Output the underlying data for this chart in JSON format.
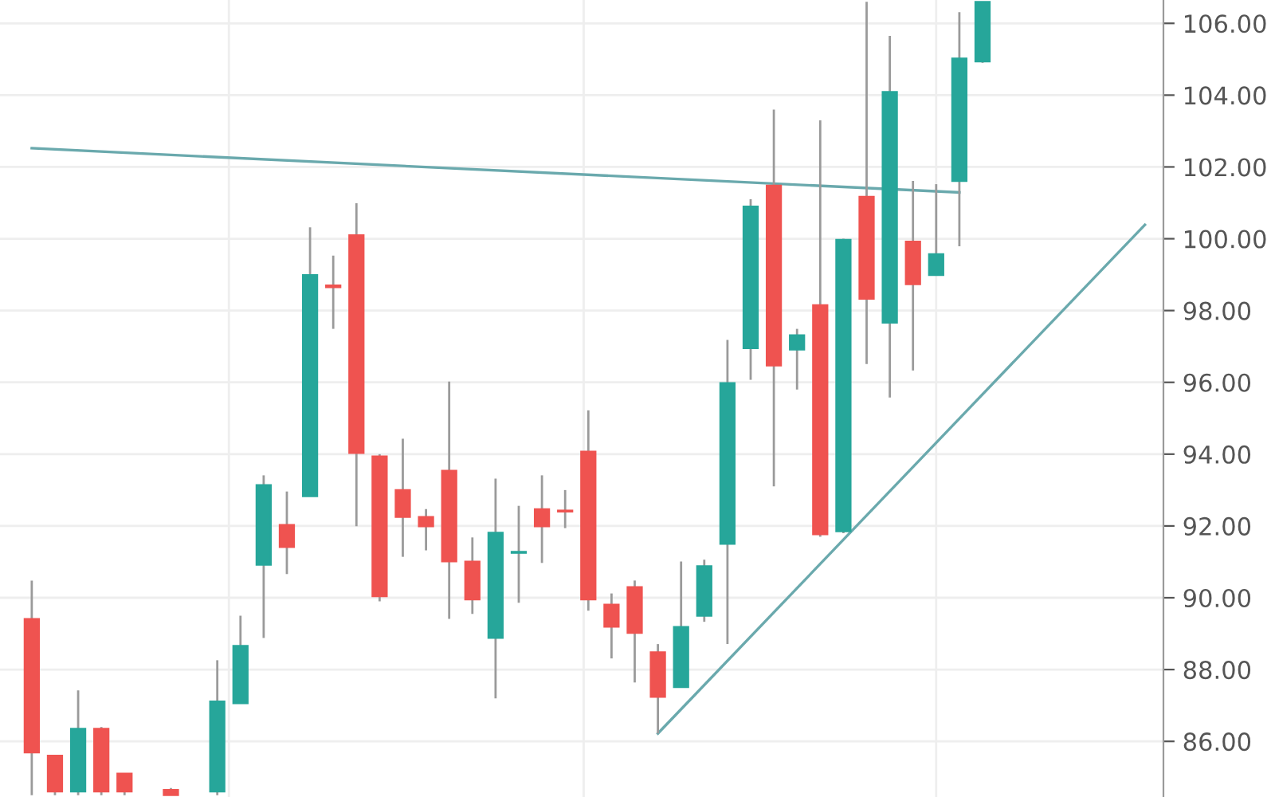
{
  "chart_data": {
    "type": "candlestick",
    "categories": [
      null,
      null,
      null,
      null,
      null,
      null,
      null,
      null,
      null,
      null,
      null,
      null,
      null,
      null,
      null,
      null,
      null,
      null,
      null,
      null,
      null,
      null,
      null,
      null,
      null,
      null,
      null,
      null,
      null,
      null,
      null,
      null,
      null,
      null,
      null,
      null,
      null,
      null,
      null,
      null,
      null,
      null,
      null,
      null,
      null,
      null,
      null,
      null,
      null
    ],
    "ohlc": [
      [
        89.41,
        90.48,
        84.5,
        85.69
      ],
      [
        85.6,
        85.6,
        84.5,
        84.6
      ],
      [
        84.6,
        87.42,
        84.5,
        86.35
      ],
      [
        86.35,
        86.4,
        84.5,
        84.6
      ],
      [
        85.1,
        85.1,
        84.5,
        84.6
      ],
      null,
      [
        84.65,
        84.7,
        84.5,
        84.5
      ],
      null,
      [
        84.6,
        88.26,
        84.5,
        87.11
      ],
      [
        87.06,
        89.5,
        87.06,
        88.66
      ],
      [
        90.92,
        93.41,
        88.88,
        93.14
      ],
      [
        92.03,
        92.96,
        90.66,
        91.41
      ],
      [
        92.83,
        100.32,
        92.83,
        98.99
      ],
      [
        98.7,
        99.53,
        97.49,
        98.65
      ],
      [
        100.1,
        100.99,
        91.99,
        94.03
      ],
      [
        93.94,
        94.0,
        89.9,
        90.04
      ],
      [
        93.0,
        94.43,
        91.14,
        92.25
      ],
      [
        92.25,
        92.47,
        91.32,
        91.99
      ],
      [
        93.54,
        96.02,
        89.41,
        91.01
      ],
      [
        91.01,
        91.68,
        89.55,
        89.95
      ],
      [
        88.88,
        93.32,
        87.2,
        91.81
      ],
      [
        91.25,
        92.56,
        89.86,
        91.28
      ],
      [
        92.47,
        93.41,
        90.97,
        91.99
      ],
      [
        92.43,
        93.0,
        91.94,
        92.4
      ],
      [
        94.07,
        95.22,
        89.64,
        89.95
      ],
      [
        89.81,
        90.12,
        88.31,
        89.19
      ],
      [
        90.3,
        90.48,
        87.64,
        89.02
      ],
      [
        88.48,
        88.71,
        86.22,
        87.24
      ],
      [
        87.51,
        91.01,
        87.51,
        89.19
      ],
      [
        89.5,
        91.06,
        89.33,
        90.88
      ],
      [
        91.5,
        97.18,
        88.71,
        95.98
      ],
      [
        96.95,
        101.1,
        96.07,
        100.9
      ],
      [
        101.48,
        103.6,
        93.1,
        96.47
      ],
      [
        96.91,
        97.49,
        95.8,
        97.31
      ],
      [
        98.15,
        103.3,
        91.7,
        91.77
      ],
      [
        91.85,
        100.0,
        91.8,
        99.97
      ],
      [
        101.17,
        106.6,
        96.51,
        98.33
      ],
      [
        97.66,
        105.65,
        95.58,
        104.09
      ],
      [
        99.92,
        101.61,
        96.33,
        98.73
      ],
      [
        98.99,
        101.52,
        98.99,
        99.57
      ],
      [
        101.61,
        106.31,
        99.79,
        105.02
      ],
      [
        104.94,
        106.6,
        104.9,
        106.6
      ],
      null,
      null,
      null,
      null,
      null,
      null,
      null
    ],
    "colors": [
      "#ef5350",
      "#ef5350",
      "#26a69a",
      "#ef5350",
      "#ef5350",
      null,
      "#ef5350",
      null,
      "#26a69a",
      "#26a69a",
      "#26a69a",
      "#ef5350",
      "#26a69a",
      "#ef5350",
      "#ef5350",
      "#ef5350",
      "#ef5350",
      "#ef5350",
      "#ef5350",
      "#ef5350",
      "#26a69a",
      "#26a69a",
      "#ef5350",
      "#ef5350",
      "#ef5350",
      "#ef5350",
      "#ef5350",
      "#ef5350",
      "#26a69a",
      "#26a69a",
      "#26a69a",
      "#26a69a",
      "#ef5350",
      "#26a69a",
      "#ef5350",
      "#26a69a",
      "#ef5350",
      "#26a69a",
      "#ef5350",
      "#26a69a",
      "#26a69a",
      "#26a69a",
      null,
      null,
      null,
      null,
      null,
      null,
      null
    ],
    "series": [
      {
        "type": "line",
        "color": "#6aa9ad",
        "values": [
          102.52,
          null,
          null,
          null,
          null,
          null,
          null,
          null,
          null,
          null,
          null,
          null,
          null,
          null,
          null,
          null,
          null,
          null,
          null,
          null,
          null,
          null,
          null,
          null,
          null,
          null,
          null,
          null,
          null,
          null,
          null,
          null,
          null,
          null,
          null,
          null,
          null,
          null,
          null,
          null,
          101.29,
          null,
          null,
          null,
          null,
          null,
          null,
          null,
          null
        ]
      },
      {
        "type": "line",
        "color": "#6aa9ad",
        "values": [
          null,
          null,
          null,
          null,
          null,
          null,
          null,
          null,
          null,
          null,
          null,
          null,
          null,
          null,
          null,
          null,
          null,
          null,
          null,
          null,
          null,
          null,
          null,
          null,
          null,
          null,
          null,
          86.22,
          null,
          null,
          null,
          null,
          null,
          null,
          null,
          null,
          null,
          null,
          null,
          null,
          null,
          null,
          null,
          null,
          null,
          null,
          null,
          null,
          100.39
        ]
      }
    ],
    "ylim": [
      84.45,
      106.65
    ],
    "yticks": [
      {
        "value": 86,
        "label": "86.00"
      },
      {
        "value": 88,
        "label": "88.00"
      },
      {
        "value": 90,
        "label": "90.00"
      },
      {
        "value": 92,
        "label": "92.00"
      },
      {
        "value": 94,
        "label": "94.00"
      },
      {
        "value": 96,
        "label": "96.00"
      },
      {
        "value": 98,
        "label": "98.00"
      },
      {
        "value": 100,
        "label": "100.00"
      },
      {
        "value": 102,
        "label": "102.00"
      },
      {
        "value": 104,
        "label": "104.00"
      },
      {
        "value": 106,
        "label": "106.00"
      }
    ],
    "tick_labels": "y",
    "grid": true
  }
}
